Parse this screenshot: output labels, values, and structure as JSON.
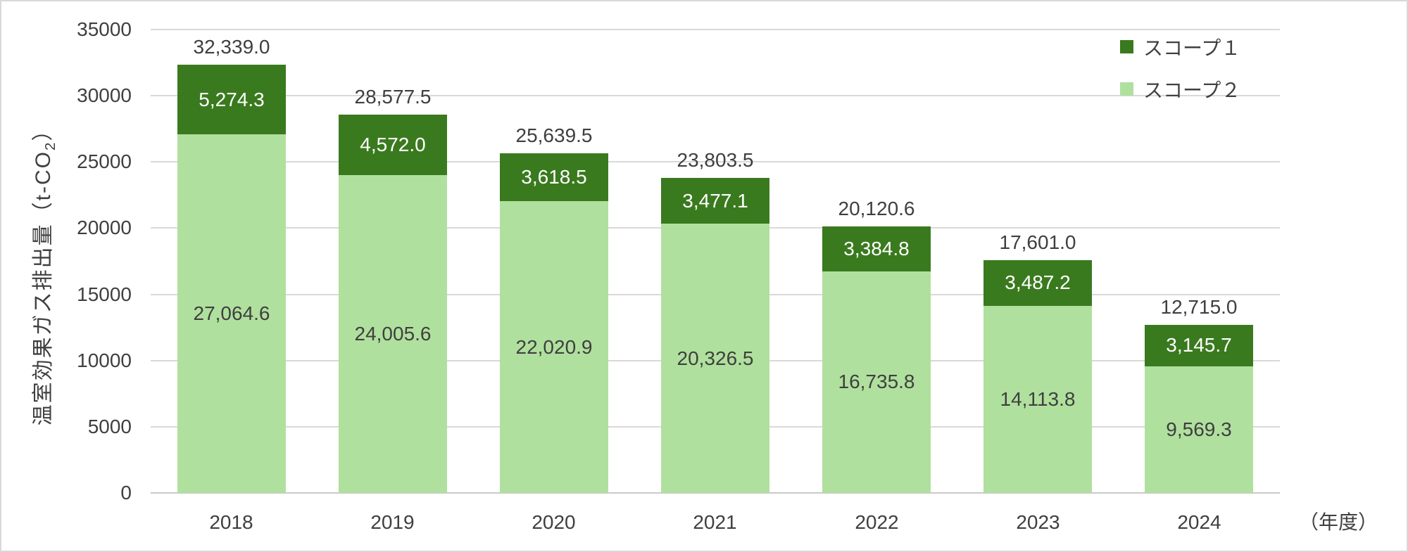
{
  "chart_data": {
    "type": "bar",
    "stacked": true,
    "title": "",
    "categories": [
      "2018",
      "2019",
      "2020",
      "2021",
      "2022",
      "2023",
      "2024"
    ],
    "series": [
      {
        "name": "スコープ１",
        "color": "#3a7a1e",
        "label_color": "#ffffff",
        "values": [
          5274.3,
          4572.0,
          3618.5,
          3477.1,
          3384.8,
          3487.2,
          3145.7
        ]
      },
      {
        "name": "スコープ２",
        "color": "#b0e09e",
        "label_color": "#3f3f3f",
        "values": [
          27064.6,
          24005.6,
          22020.9,
          20326.5,
          16735.8,
          14113.8,
          9569.3
        ]
      }
    ],
    "totals": [
      32339.0,
      28577.5,
      25639.5,
      23803.5,
      20120.6,
      17601.0,
      12715.0
    ],
    "ylabel": "温室効果ガス排出量（t-CO2）",
    "ylabel_parts": {
      "main": "温室効果ガス排出量（t-CO",
      "sub": "2",
      "close": "）"
    },
    "xunit": "（年度）",
    "yticks": [
      0,
      5000,
      10000,
      15000,
      20000,
      25000,
      30000,
      35000
    ],
    "ylim": [
      0,
      35000
    ],
    "grid": true,
    "legend_position": "top-right",
    "colors": {
      "gridline": "#d9d9d9",
      "axis": "#c9c9c9",
      "text": "#3f3f3f",
      "border": "#d9d9d9",
      "background": "#ffffff"
    }
  }
}
